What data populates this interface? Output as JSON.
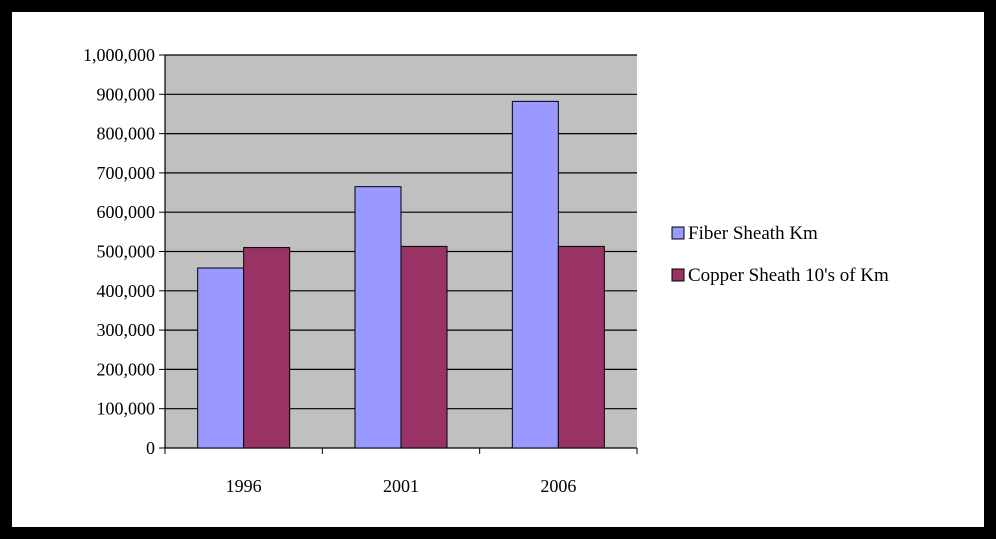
{
  "chart_data": {
    "type": "bar",
    "categories": [
      "1996",
      "2001",
      "2006"
    ],
    "series": [
      {
        "name": "Fiber Sheath Km",
        "values": [
          458000,
          665000,
          882000
        ],
        "color": "#9999ff"
      },
      {
        "name": "Copper Sheath 10's of Km",
        "values": [
          510000,
          513000,
          513000
        ],
        "color": "#993366"
      }
    ],
    "y_ticks": [
      "0",
      "100,000",
      "200,000",
      "300,000",
      "400,000",
      "500,000",
      "600,000",
      "700,000",
      "800,000",
      "900,000",
      "1,000,000"
    ],
    "ylim": [
      0,
      1000000
    ],
    "grid": true,
    "legend_position": "right",
    "plot_background": "#c0c0c0",
    "title": "",
    "xlabel": "",
    "ylabel": ""
  }
}
